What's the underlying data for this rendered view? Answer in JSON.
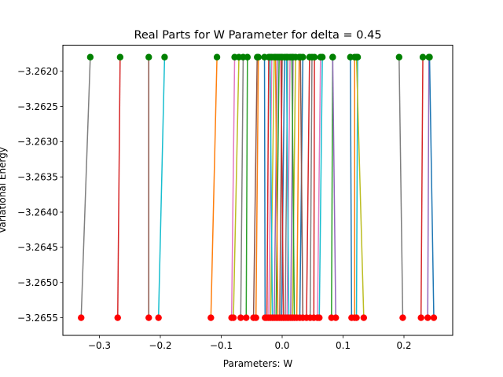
{
  "chart_data": {
    "type": "line",
    "title": "Real Parts for W Parameter for delta = 0.45",
    "xlabel": "Parameters: W",
    "ylabel": "Variational Energy",
    "xlim": [
      -0.36,
      0.28
    ],
    "ylim": [
      -3.26575,
      -3.26163
    ],
    "xticks": [
      -0.3,
      -0.2,
      -0.1,
      0.0,
      0.1,
      0.2
    ],
    "xtick_labels": [
      "−0.3",
      "−0.2",
      "−0.1",
      "0.0",
      "0.1",
      "0.2"
    ],
    "yticks": [
      -3.2655,
      -3.265,
      -3.2645,
      -3.264,
      -3.2635,
      -3.263,
      -3.2625,
      -3.262
    ],
    "ytick_labels": [
      "−3.2655",
      "−3.2650",
      "−3.2645",
      "−3.2640",
      "−3.2635",
      "−3.2630",
      "−3.2625",
      "−3.2620"
    ],
    "grid": false,
    "start_marker_color": "#ff0000",
    "end_marker_color": "#008000",
    "series": [
      {
        "color": "#7f7f7f",
        "x": [
          -0.33,
          -0.315
        ],
        "y": [
          -3.2655,
          -3.2618
        ]
      },
      {
        "color": "#d62728",
        "x": [
          -0.27,
          -0.266
        ],
        "y": [
          -3.2655,
          -3.2618
        ]
      },
      {
        "color": "#8c564b",
        "x": [
          -0.219,
          -0.219
        ],
        "y": [
          -3.2655,
          -3.2618
        ]
      },
      {
        "color": "#17becf",
        "x": [
          -0.203,
          -0.193
        ],
        "y": [
          -3.2655,
          -3.2618
        ]
      },
      {
        "color": "#ff7f0e",
        "x": [
          -0.117,
          -0.107
        ],
        "y": [
          -3.2655,
          -3.2618
        ]
      },
      {
        "color": "#e377c2",
        "x": [
          -0.083,
          -0.078
        ],
        "y": [
          -3.2655,
          -3.2618
        ]
      },
      {
        "color": "#bcbd22",
        "x": [
          -0.08,
          -0.071
        ],
        "y": [
          -3.2655,
          -3.2618
        ]
      },
      {
        "color": "#7f7f7f",
        "x": [
          -0.068,
          -0.064
        ],
        "y": [
          -3.2655,
          -3.2618
        ]
      },
      {
        "color": "#2ca02c",
        "x": [
          -0.059,
          -0.057
        ],
        "y": [
          -3.2655,
          -3.2618
        ]
      },
      {
        "color": "#8c564b",
        "x": [
          -0.047,
          -0.041
        ],
        "y": [
          -3.2655,
          -3.2618
        ]
      },
      {
        "color": "#ff7f0e",
        "x": [
          -0.043,
          -0.039
        ],
        "y": [
          -3.2655,
          -3.2618
        ]
      },
      {
        "color": "#1f77b4",
        "x": [
          -0.028,
          -0.029
        ],
        "y": [
          -3.2655,
          -3.2618
        ]
      },
      {
        "color": "#d62728",
        "x": [
          -0.025,
          -0.022
        ],
        "y": [
          -3.2655,
          -3.2618
        ]
      },
      {
        "color": "#e377c2",
        "x": [
          -0.022,
          -0.017
        ],
        "y": [
          -3.2655,
          -3.2618
        ]
      },
      {
        "color": "#bcbd22",
        "x": [
          -0.019,
          -0.013
        ],
        "y": [
          -3.2655,
          -3.2618
        ]
      },
      {
        "color": "#17becf",
        "x": [
          -0.016,
          -0.02
        ],
        "y": [
          -3.2655,
          -3.2618
        ]
      },
      {
        "color": "#9467bd",
        "x": [
          -0.013,
          -0.008
        ],
        "y": [
          -3.2655,
          -3.2618
        ]
      },
      {
        "color": "#2ca02c",
        "x": [
          -0.01,
          -0.005
        ],
        "y": [
          -3.2655,
          -3.2618
        ]
      },
      {
        "color": "#ff7f0e",
        "x": [
          -0.007,
          -0.011
        ],
        "y": [
          -3.2655,
          -3.2618
        ]
      },
      {
        "color": "#8c564b",
        "x": [
          -0.004,
          0.0
        ],
        "y": [
          -3.2655,
          -3.2618
        ]
      },
      {
        "color": "#1f77b4",
        "x": [
          -0.001,
          0.004
        ],
        "y": [
          -3.2655,
          -3.2618
        ]
      },
      {
        "color": "#d62728",
        "x": [
          0.002,
          -0.002
        ],
        "y": [
          -3.2655,
          -3.2618
        ]
      },
      {
        "color": "#7f7f7f",
        "x": [
          0.005,
          0.009
        ],
        "y": [
          -3.2655,
          -3.2618
        ]
      },
      {
        "color": "#e377c2",
        "x": [
          0.008,
          0.013
        ],
        "y": [
          -3.2655,
          -3.2618
        ]
      },
      {
        "color": "#17becf",
        "x": [
          0.011,
          0.007
        ],
        "y": [
          -3.2655,
          -3.2618
        ]
      },
      {
        "color": "#9467bd",
        "x": [
          0.014,
          0.018
        ],
        "y": [
          -3.2655,
          -3.2618
        ]
      },
      {
        "color": "#bcbd22",
        "x": [
          0.017,
          0.022
        ],
        "y": [
          -3.2655,
          -3.2618
        ]
      },
      {
        "color": "#2ca02c",
        "x": [
          0.02,
          0.016
        ],
        "y": [
          -3.2655,
          -3.2618
        ]
      },
      {
        "color": "#ff7f0e",
        "x": [
          0.024,
          0.028
        ],
        "y": [
          -3.2655,
          -3.2618
        ]
      },
      {
        "color": "#1f77b4",
        "x": [
          0.029,
          0.034
        ],
        "y": [
          -3.2655,
          -3.2618
        ]
      },
      {
        "color": "#8c564b",
        "x": [
          0.034,
          0.03
        ],
        "y": [
          -3.2655,
          -3.2618
        ]
      },
      {
        "color": "#d62728",
        "x": [
          0.04,
          0.045
        ],
        "y": [
          -3.2655,
          -3.2618
        ]
      },
      {
        "color": "#7f7f7f",
        "x": [
          0.046,
          0.049
        ],
        "y": [
          -3.2655,
          -3.2618
        ]
      },
      {
        "color": "#d62728",
        "x": [
          0.052,
          0.053
        ],
        "y": [
          -3.2655,
          -3.2618
        ]
      },
      {
        "color": "#e377c2",
        "x": [
          0.058,
          0.063
        ],
        "y": [
          -3.2655,
          -3.2618
        ]
      },
      {
        "color": "#17becf",
        "x": [
          0.061,
          0.066
        ],
        "y": [
          -3.2655,
          -3.2618
        ]
      },
      {
        "color": "#2ca02c",
        "x": [
          0.081,
          0.083
        ],
        "y": [
          -3.2655,
          -3.2618
        ]
      },
      {
        "color": "#9467bd",
        "x": [
          0.088,
          0.083
        ],
        "y": [
          -3.2655,
          -3.2618
        ]
      },
      {
        "color": "#1f77b4",
        "x": [
          0.114,
          0.112
        ],
        "y": [
          -3.2655,
          -3.2618
        ]
      },
      {
        "color": "#ff7f0e",
        "x": [
          0.119,
          0.119
        ],
        "y": [
          -3.2655,
          -3.2618
        ]
      },
      {
        "color": "#17becf",
        "x": [
          0.122,
          0.124
        ],
        "y": [
          -3.2655,
          -3.2618
        ]
      },
      {
        "color": "#bcbd22",
        "x": [
          0.134,
          0.122
        ],
        "y": [
          -3.2655,
          -3.2618
        ]
      },
      {
        "color": "#7f7f7f",
        "x": [
          0.198,
          0.192
        ],
        "y": [
          -3.2655,
          -3.2618
        ]
      },
      {
        "color": "#d62728",
        "x": [
          0.228,
          0.231
        ],
        "y": [
          -3.2655,
          -3.2618
        ]
      },
      {
        "color": "#9467bd",
        "x": [
          0.239,
          0.241
        ],
        "y": [
          -3.2655,
          -3.2618
        ]
      },
      {
        "color": "#1f77b4",
        "x": [
          0.249,
          0.242
        ],
        "y": [
          -3.2655,
          -3.2618
        ]
      }
    ]
  }
}
